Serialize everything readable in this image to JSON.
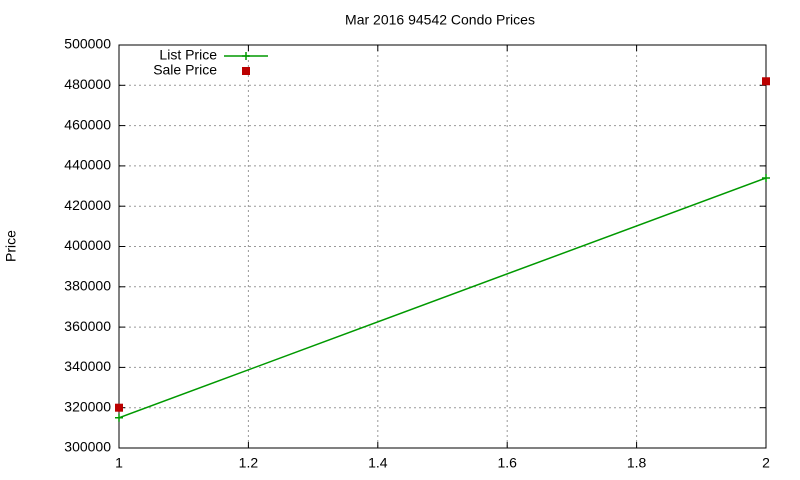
{
  "chart_data": {
    "type": "line",
    "title": "Mar 2016 94542 Condo Prices",
    "y_label": "Price",
    "x": [
      1,
      2
    ],
    "series": [
      {
        "name": "List Price",
        "color": "#009900",
        "style": "linespoints",
        "values": [
          315000,
          434000
        ]
      },
      {
        "name": "Sale Price",
        "color": "#bb0000",
        "style": "points",
        "values": [
          320000,
          482000
        ]
      }
    ],
    "xlim": [
      1,
      2
    ],
    "xticks": [
      1,
      1.2,
      1.4,
      1.6,
      1.8,
      2
    ],
    "ylim": [
      300000,
      500000
    ],
    "yticks": [
      300000,
      320000,
      340000,
      360000,
      380000,
      400000,
      420000,
      440000,
      460000,
      480000,
      500000
    ],
    "grid": true,
    "legend": "top-left"
  }
}
